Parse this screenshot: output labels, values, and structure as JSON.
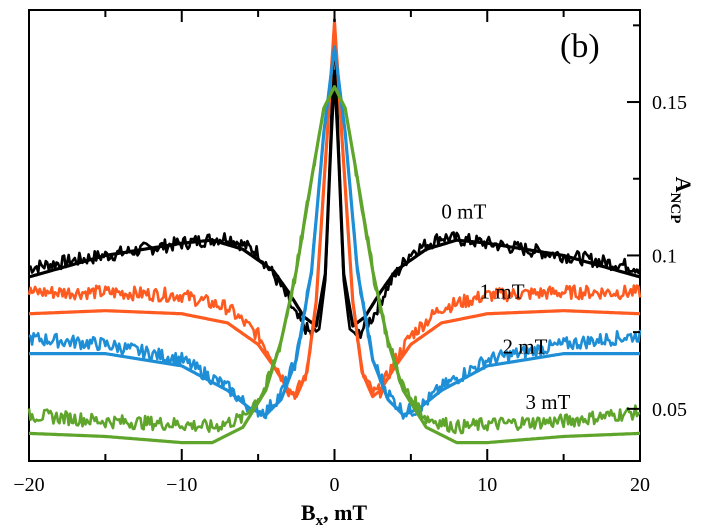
{
  "chart_data": {
    "type": "line",
    "panel_label": "(b)",
    "xlabel": {
      "main": "B",
      "sub": "x",
      "suffix": ", mT"
    },
    "ylabel": {
      "main": "A",
      "sub": "NCP"
    },
    "xlim": [
      -20,
      20
    ],
    "ylim": [
      0.033,
      0.18
    ],
    "x_ticks": [
      -20,
      -10,
      0,
      10,
      20
    ],
    "x_tick_labels": [
      "−20",
      "−10",
      "0",
      "10",
      "20"
    ],
    "y_ticks": [
      0.05,
      0.1,
      0.15
    ],
    "y_tick_labels": [
      "0.05",
      "0.1",
      "0.15"
    ],
    "grid": false,
    "series": [
      {
        "name": "0 mT",
        "color": "#000000",
        "points": [
          [
            -20,
            0.096
          ],
          [
            -15,
            0.1
          ],
          [
            -10,
            0.104
          ],
          [
            -7,
            0.106
          ],
          [
            -5,
            0.101
          ],
          [
            -3.5,
            0.09
          ],
          [
            -2.5,
            0.08
          ],
          [
            -1.5,
            0.074
          ],
          [
            -1,
            0.076
          ],
          [
            -0.6,
            0.092
          ],
          [
            -0.3,
            0.13
          ],
          [
            0,
            0.177
          ],
          [
            0.3,
            0.13
          ],
          [
            0.6,
            0.092
          ],
          [
            1,
            0.076
          ],
          [
            1.5,
            0.074
          ],
          [
            2.5,
            0.08
          ],
          [
            3.5,
            0.09
          ],
          [
            5,
            0.101
          ],
          [
            7,
            0.106
          ],
          [
            10,
            0.104
          ],
          [
            15,
            0.1
          ],
          [
            20,
            0.096
          ]
        ],
        "fit": [
          [
            -20,
            0.093
          ],
          [
            -15,
            0.1
          ],
          [
            -10,
            0.104
          ],
          [
            -8,
            0.105
          ],
          [
            -6,
            0.102
          ],
          [
            -4,
            0.095
          ],
          [
            -3,
            0.088
          ],
          [
            -2,
            0.08
          ],
          [
            -1.2,
            0.077
          ],
          [
            -0.6,
            0.094
          ],
          [
            -0.25,
            0.135
          ],
          [
            0,
            0.16
          ],
          [
            0.25,
            0.135
          ],
          [
            0.6,
            0.094
          ],
          [
            1.2,
            0.077
          ],
          [
            2,
            0.08
          ],
          [
            3,
            0.088
          ],
          [
            4,
            0.095
          ],
          [
            6,
            0.102
          ],
          [
            8,
            0.105
          ],
          [
            10,
            0.104
          ],
          [
            15,
            0.1
          ],
          [
            20,
            0.093
          ]
        ]
      },
      {
        "name": "1 mT",
        "color": "#ff5a1f",
        "points": [
          [
            -20,
            0.088
          ],
          [
            -15,
            0.088
          ],
          [
            -10,
            0.087
          ],
          [
            -7,
            0.083
          ],
          [
            -5,
            0.074
          ],
          [
            -4,
            0.066
          ],
          [
            -3,
            0.056
          ],
          [
            -2.5,
            0.055
          ],
          [
            -1.8,
            0.062
          ],
          [
            -1.2,
            0.085
          ],
          [
            -0.6,
            0.13
          ],
          [
            0,
            0.176
          ],
          [
            0.6,
            0.13
          ],
          [
            1.2,
            0.085
          ],
          [
            1.8,
            0.062
          ],
          [
            2.5,
            0.055
          ],
          [
            3,
            0.056
          ],
          [
            4,
            0.066
          ],
          [
            5,
            0.074
          ],
          [
            7,
            0.083
          ],
          [
            10,
            0.087
          ],
          [
            15,
            0.088
          ],
          [
            20,
            0.088
          ]
        ],
        "fit": [
          [
            -20,
            0.081
          ],
          [
            -15,
            0.082
          ],
          [
            -10,
            0.081
          ],
          [
            -7,
            0.078
          ],
          [
            -5,
            0.071
          ],
          [
            -4,
            0.064
          ],
          [
            -3,
            0.056
          ],
          [
            -2.5,
            0.054
          ],
          [
            -1.8,
            0.062
          ],
          [
            -1.2,
            0.085
          ],
          [
            -0.6,
            0.13
          ],
          [
            0,
            0.176
          ],
          [
            0.6,
            0.13
          ],
          [
            1.2,
            0.085
          ],
          [
            1.8,
            0.062
          ],
          [
            2.5,
            0.054
          ],
          [
            3,
            0.056
          ],
          [
            4,
            0.064
          ],
          [
            5,
            0.071
          ],
          [
            7,
            0.078
          ],
          [
            10,
            0.081
          ],
          [
            15,
            0.082
          ],
          [
            20,
            0.081
          ]
        ]
      },
      {
        "name": "2 mT",
        "color": "#1e8fd6",
        "points": [
          [
            -20,
            0.073
          ],
          [
            -15,
            0.071
          ],
          [
            -10,
            0.066
          ],
          [
            -7,
            0.057
          ],
          [
            -5.5,
            0.05
          ],
          [
            -4.5,
            0.049
          ],
          [
            -3.5,
            0.055
          ],
          [
            -2.5,
            0.066
          ],
          [
            -1.5,
            0.095
          ],
          [
            -0.7,
            0.14
          ],
          [
            0,
            0.168
          ],
          [
            0.7,
            0.14
          ],
          [
            1.5,
            0.095
          ],
          [
            2.5,
            0.066
          ],
          [
            3.5,
            0.055
          ],
          [
            4.5,
            0.049
          ],
          [
            5.5,
            0.05
          ],
          [
            7,
            0.057
          ],
          [
            10,
            0.066
          ],
          [
            15,
            0.071
          ],
          [
            20,
            0.074
          ]
        ],
        "fit": [
          [
            -20,
            0.068
          ],
          [
            -15,
            0.068
          ],
          [
            -10,
            0.064
          ],
          [
            -7,
            0.056
          ],
          [
            -5.5,
            0.05
          ],
          [
            -4.5,
            0.048
          ],
          [
            -3.5,
            0.053
          ],
          [
            -2.5,
            0.066
          ],
          [
            -1.5,
            0.095
          ],
          [
            -0.7,
            0.14
          ],
          [
            0,
            0.168
          ],
          [
            0.7,
            0.14
          ],
          [
            1.5,
            0.095
          ],
          [
            2.5,
            0.066
          ],
          [
            3.5,
            0.053
          ],
          [
            4.5,
            0.048
          ],
          [
            5.5,
            0.05
          ],
          [
            7,
            0.056
          ],
          [
            10,
            0.064
          ],
          [
            15,
            0.068
          ],
          [
            20,
            0.068
          ]
        ]
      },
      {
        "name": "3 mT",
        "color": "#5fa52c",
        "points": [
          [
            -20,
            0.048
          ],
          [
            -15,
            0.046
          ],
          [
            -10,
            0.045
          ],
          [
            -8,
            0.044
          ],
          [
            -6,
            0.047
          ],
          [
            -4.5,
            0.057
          ],
          [
            -3.5,
            0.072
          ],
          [
            -2.5,
            0.095
          ],
          [
            -1.5,
            0.125
          ],
          [
            -0.7,
            0.148
          ],
          [
            0,
            0.155
          ],
          [
            0.7,
            0.148
          ],
          [
            1.5,
            0.125
          ],
          [
            2.5,
            0.095
          ],
          [
            3.5,
            0.072
          ],
          [
            4.5,
            0.057
          ],
          [
            6,
            0.047
          ],
          [
            8,
            0.044
          ],
          [
            10,
            0.045
          ],
          [
            15,
            0.046
          ],
          [
            20,
            0.049
          ]
        ],
        "fit": [
          [
            -20,
            0.042
          ],
          [
            -15,
            0.041
          ],
          [
            -10,
            0.039
          ],
          [
            -8,
            0.039
          ],
          [
            -6,
            0.044
          ],
          [
            -4.5,
            0.056
          ],
          [
            -3.5,
            0.072
          ],
          [
            -2.5,
            0.095
          ],
          [
            -1.5,
            0.125
          ],
          [
            -0.7,
            0.148
          ],
          [
            0,
            0.155
          ],
          [
            0.7,
            0.148
          ],
          [
            1.5,
            0.125
          ],
          [
            2.5,
            0.095
          ],
          [
            3.5,
            0.072
          ],
          [
            4.5,
            0.056
          ],
          [
            6,
            0.044
          ],
          [
            8,
            0.039
          ],
          [
            10,
            0.039
          ],
          [
            15,
            0.041
          ],
          [
            20,
            0.042
          ]
        ]
      }
    ],
    "annotations": [
      {
        "text": "0 mT",
        "x": 7,
        "y": 0.112,
        "color": "#000000"
      },
      {
        "text": "1 mT",
        "x": 9.5,
        "y": 0.086,
        "color": "#000000"
      },
      {
        "text": "2 mT",
        "x": 11,
        "y": 0.068,
        "color": "#000000"
      },
      {
        "text": "3 mT",
        "x": 12.5,
        "y": 0.05,
        "color": "#000000"
      }
    ]
  }
}
